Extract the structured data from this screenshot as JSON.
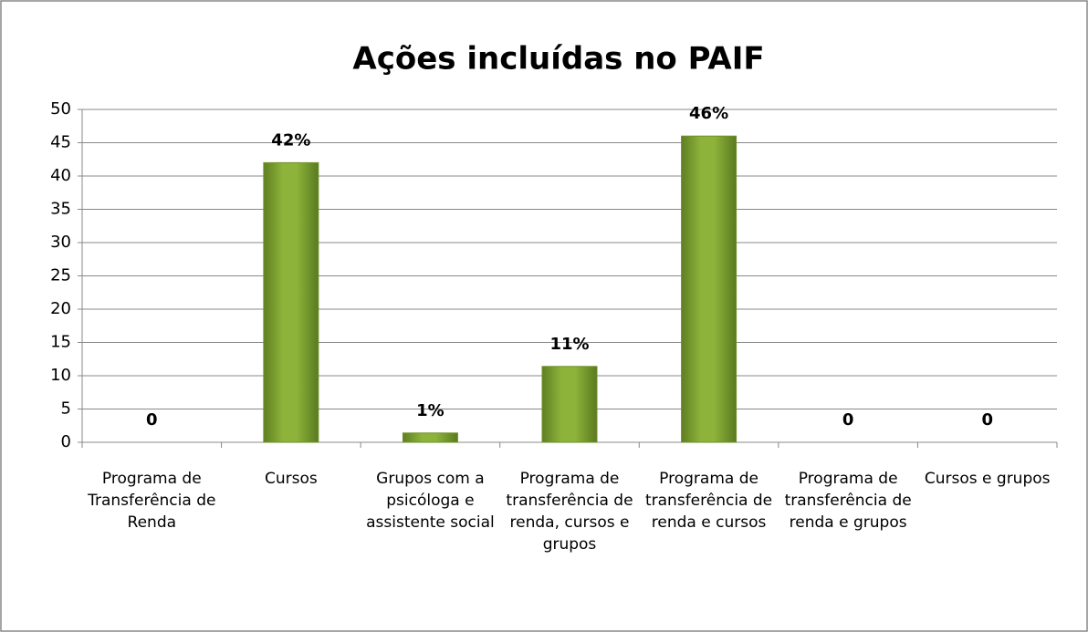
{
  "chart_data": {
    "type": "bar",
    "title": "Ações incluídas no PAIF",
    "categories": [
      "Programa de Transferência de Renda",
      "Cursos",
      "Grupos com a psicóloga e assistente social",
      "Programa de transferência de renda, cursos e grupos",
      "Programa de transferência de renda e cursos",
      "Programa de transferência de renda e grupos",
      "Cursos e grupos"
    ],
    "values": [
      0,
      42,
      1.4,
      11.4,
      46,
      0,
      0
    ],
    "value_labels": [
      "0",
      "42%",
      "1%",
      "11%",
      "46%",
      "0",
      "0"
    ],
    "color": "#8db33a",
    "ylim": [
      0,
      50
    ],
    "yticks": [
      0,
      5,
      10,
      15,
      20,
      25,
      30,
      35,
      40,
      45,
      50
    ],
    "grid": true
  }
}
